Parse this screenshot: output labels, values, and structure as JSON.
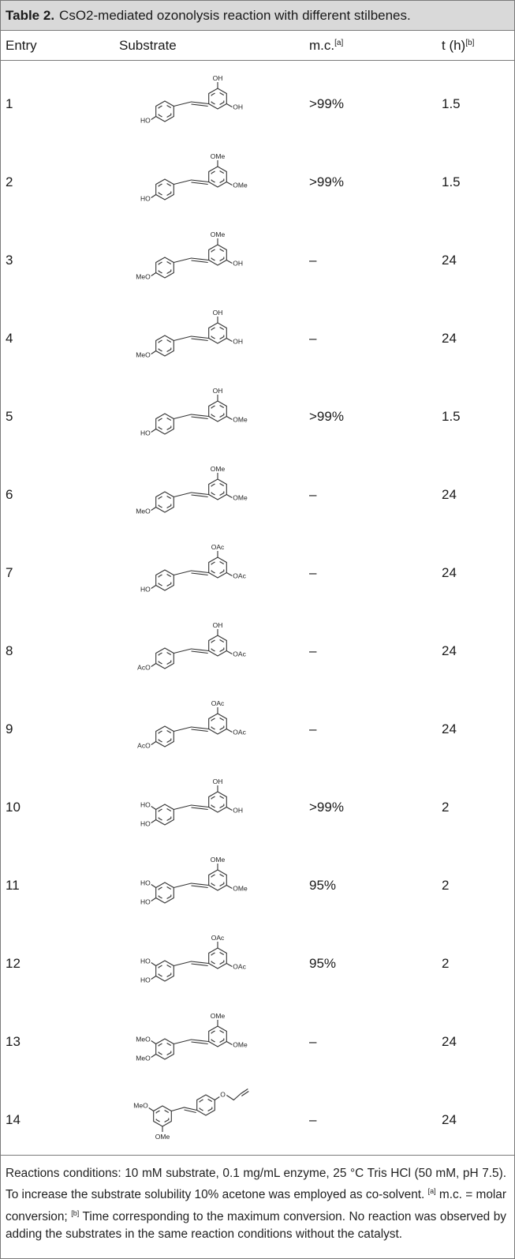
{
  "table": {
    "label": "Table 2.",
    "title": "CsO2-mediated ozonolysis reaction with different stilbenes.",
    "columns": {
      "entry": "Entry",
      "substrate": "Substrate",
      "mc": "m.c.",
      "mc_note": "[a]",
      "t": "t (h)",
      "t_note": "[b]"
    },
    "rows": [
      {
        "entry": "1",
        "mc": ">99%",
        "t": "1.5",
        "a": "HO",
        "a2": "",
        "top": "OH",
        "right": "OH"
      },
      {
        "entry": "2",
        "mc": ">99%",
        "t": "1.5",
        "a": "HO",
        "a2": "",
        "top": "OMe",
        "right": "OMe"
      },
      {
        "entry": "3",
        "mc": "–",
        "t": "24",
        "a": "MeO",
        "a2": "",
        "top": "OMe",
        "right": "OH"
      },
      {
        "entry": "4",
        "mc": "–",
        "t": "24",
        "a": "MeO",
        "a2": "",
        "top": "OH",
        "right": "OH"
      },
      {
        "entry": "5",
        "mc": ">99%",
        "t": "1.5",
        "a": "HO",
        "a2": "",
        "top": "OH",
        "right": "OMe"
      },
      {
        "entry": "6",
        "mc": "–",
        "t": "24",
        "a": "MeO",
        "a2": "",
        "top": "OMe",
        "right": "OMe"
      },
      {
        "entry": "7",
        "mc": "–",
        "t": "24",
        "a": "HO",
        "a2": "",
        "top": "OAc",
        "right": "OAc"
      },
      {
        "entry": "8",
        "mc": "–",
        "t": "24",
        "a": "AcO",
        "a2": "",
        "top": "OH",
        "right": "OAc"
      },
      {
        "entry": "9",
        "mc": "–",
        "t": "24",
        "a": "AcO",
        "a2": "",
        "top": "OAc",
        "right": "OAc"
      },
      {
        "entry": "10",
        "mc": ">99%",
        "t": "2",
        "a": "HO",
        "a2": "HO",
        "top": "OH",
        "right": "OH"
      },
      {
        "entry": "11",
        "mc": "95%",
        "t": "2",
        "a": "HO",
        "a2": "HO",
        "top": "OMe",
        "right": "OMe"
      },
      {
        "entry": "12",
        "mc": "95%",
        "t": "2",
        "a": "HO",
        "a2": "HO",
        "top": "OAc",
        "right": "OAc"
      },
      {
        "entry": "13",
        "mc": "–",
        "t": "24",
        "a": "MeO",
        "a2": "MeO",
        "top": "OMe",
        "right": "OMe"
      },
      {
        "entry": "14",
        "mc": "–",
        "t": "24",
        "a": "MeO",
        "a2": "OMe",
        "top": "O",
        "right": ""
      }
    ],
    "footnote": {
      "conditions": "Reactions conditions: 10 mM substrate, 0.1 mg/mL enzyme, 25 °C Tris HCl (50 mM, pH 7.5). To increase the substrate solubility 10% acetone was employed as co-solvent. ",
      "a_mark": "[a]",
      "a_text": " m.c. = molar conversion; ",
      "b_mark": "[b]",
      "b_text": " Time corresponding to the maximum conversion. No reaction was observed by adding the substrates in the same reaction conditions without the catalyst."
    }
  }
}
